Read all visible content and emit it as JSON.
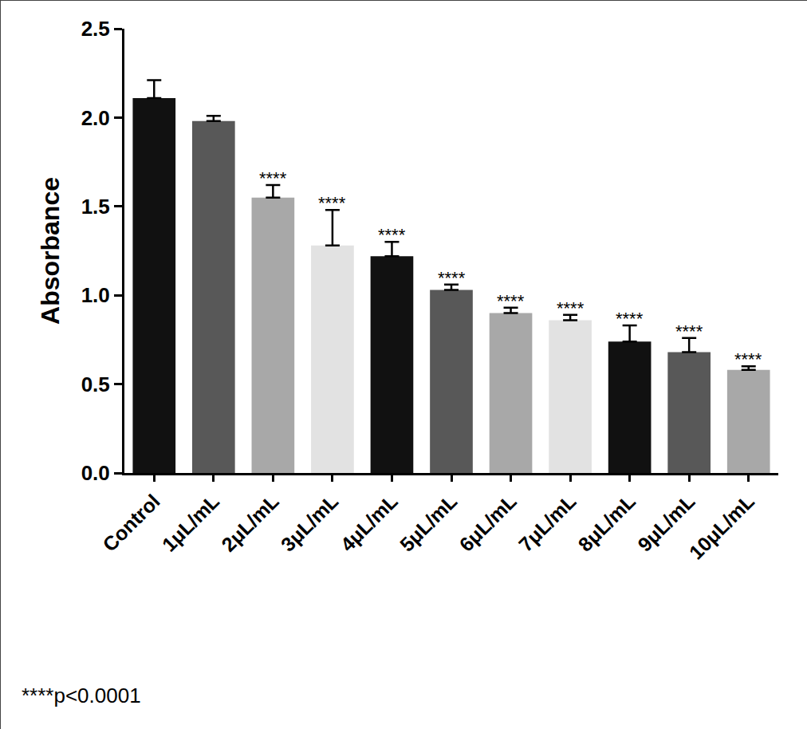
{
  "chart_data": {
    "type": "bar",
    "y_label": "Absorbance",
    "categories": [
      "Control",
      "1μL/mL",
      "2μL/mL",
      "3μL/mL",
      "4μL/mL",
      "5μL/mL",
      "6μL/mL",
      "7μL/mL",
      "8μL/mL",
      "9μL/mL",
      "10μL/mL"
    ],
    "values": [
      2.11,
      1.98,
      1.55,
      1.28,
      1.22,
      1.03,
      0.9,
      0.86,
      0.74,
      0.68,
      0.58
    ],
    "error": [
      0.1,
      0.03,
      0.07,
      0.2,
      0.08,
      0.03,
      0.03,
      0.03,
      0.09,
      0.08,
      0.02
    ],
    "colors": [
      "#111111",
      "#585858",
      "#a8a8a8",
      "#e2e2e2",
      "#111111",
      "#585858",
      "#a8a8a8",
      "#e2e2e2",
      "#111111",
      "#585858",
      "#a8a8a8"
    ],
    "bar_annotations": [
      null,
      null,
      "****",
      "****",
      "****",
      "****",
      "****",
      "****",
      "****",
      "****",
      "****"
    ],
    "footnote": "****p<0.0001",
    "ylim": [
      0,
      2.5
    ],
    "yticks": [
      {
        "value": 0,
        "label": "0.0"
      },
      {
        "value": 0.5,
        "label": "0.5"
      },
      {
        "value": 1,
        "label": "1.0"
      },
      {
        "value": 1.5,
        "label": "1.5"
      },
      {
        "value": 2,
        "label": "2.0"
      },
      {
        "value": 2.5,
        "label": "2.5"
      }
    ],
    "grid": false
  }
}
